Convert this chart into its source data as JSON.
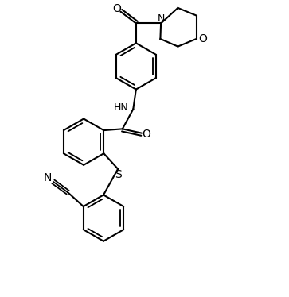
{
  "bg_color": "#ffffff",
  "line_color": "#000000",
  "line_width": 1.5,
  "font_size": 9,
  "figsize": [
    3.63,
    3.74
  ],
  "dpi": 100,
  "xlim": [
    0,
    10
  ],
  "ylim": [
    0,
    10.3
  ]
}
